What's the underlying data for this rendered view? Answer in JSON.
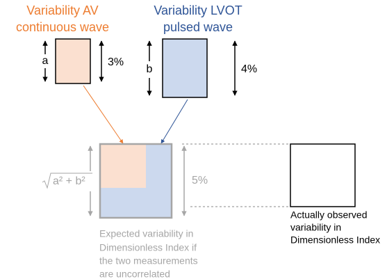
{
  "av": {
    "title": [
      "Variability AV",
      "continuous wave"
    ],
    "side_label": "a",
    "percent": "3%"
  },
  "lvot": {
    "title": [
      "Variability LVOT",
      "pulsed wave"
    ],
    "side_label": "b",
    "percent": "4%"
  },
  "expected": {
    "side_label": "a² + b²",
    "percent": "5%",
    "caption": [
      "Expected variability in",
      "Dimensionless Index if",
      "the two measurements",
      "are uncorrelated"
    ]
  },
  "observed": {
    "caption": [
      "Actually observed",
      "variability in",
      "Dimensionless Index"
    ]
  }
}
